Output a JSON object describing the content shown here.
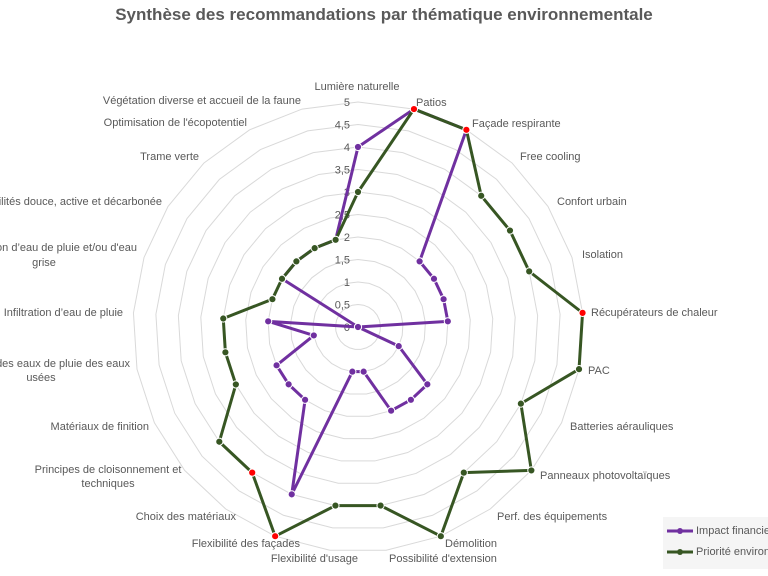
{
  "chart_data": {
    "type": "radar",
    "title": "Synthèse des recommandations par thématique environnementale",
    "categories": [
      "Lumière naturelle",
      "Patios",
      "Façade respirante",
      "Free cooling",
      "Confort urbain",
      "Isolation",
      "Récupérateurs de chaleur",
      "PAC",
      "Batteries aérauliques",
      "Panneaux photovoltaïques",
      "Perf. des équipements",
      "Démolition",
      "Possibilité d'extension",
      "Flexibilité d'usage",
      "Flexibilité des façades",
      "Choix des matériaux",
      "Principes de cloisonnement et techniques",
      "Matériaux de finition",
      "n des eaux de pluie des eaux usées",
      "Infiltration d’eau de pluie",
      "on d’eau de pluie et/ou d'eau grise",
      "bilités douce, active et décarbonée",
      "Trame verte",
      "Optimisation de l'écopotentiel",
      "Végétation diverse et accueil de la faune"
    ],
    "category_lines": [
      [
        "Lumière naturelle"
      ],
      [
        "Patios"
      ],
      [
        "Façade respirante"
      ],
      [
        "Free cooling"
      ],
      [
        "Confort urbain"
      ],
      [
        "Isolation"
      ],
      [
        "Récupérateurs de chaleur"
      ],
      [
        "PAC"
      ],
      [
        "Batteries aérauliques"
      ],
      [
        "Panneaux photovoltaïques"
      ],
      [
        "Perf. des équipements"
      ],
      [
        "Démolition"
      ],
      [
        "Possibilité d'extension"
      ],
      [
        "Flexibilité d'usage"
      ],
      [
        "Flexibilité des façades"
      ],
      [
        "Choix des matériaux"
      ],
      [
        "Principes de cloisonnement et",
        "techniques"
      ],
      [
        "Matériaux de finition"
      ],
      [
        "n des eaux de pluie des eaux",
        "usées"
      ],
      [
        "Infiltration d’eau de pluie"
      ],
      [
        "on d’eau de pluie et/ou d'eau",
        "grise"
      ],
      [
        "bilités douce, active et décarbonée"
      ],
      [
        "Trame verte"
      ],
      [
        "Optimisation de l'écopotentiel"
      ],
      [
        "Végétation diverse et accueil de la faune"
      ]
    ],
    "series": [
      {
        "name": "Impact financier",
        "color": "#7030a0",
        "values": [
          4,
          5,
          5,
          2,
          2,
          2,
          2,
          0,
          1,
          2,
          2,
          2,
          1,
          1,
          4,
          2,
          2,
          2,
          1,
          2,
          0,
          2,
          2,
          2,
          2
        ]
      },
      {
        "name": "Priorité environ",
        "color": "#375623",
        "values": [
          3,
          5,
          5,
          4,
          4,
          4,
          5,
          5,
          4,
          5,
          4,
          5,
          4,
          4,
          5,
          4,
          4,
          3,
          3,
          3,
          2,
          2,
          2,
          2,
          2
        ],
        "highlighted_points": [
          1,
          2,
          6,
          14,
          15
        ],
        "highlight_color": "#ff0000"
      }
    ],
    "rlim": [
      0,
      5
    ],
    "ticks": [
      "0",
      "0,5",
      "1",
      "1,5",
      "2",
      "2,5",
      "3",
      "3,5",
      "4",
      "4,5",
      "5"
    ],
    "grid": true,
    "grid_color": "#d9d9d9",
    "legend": "bottom-right"
  }
}
